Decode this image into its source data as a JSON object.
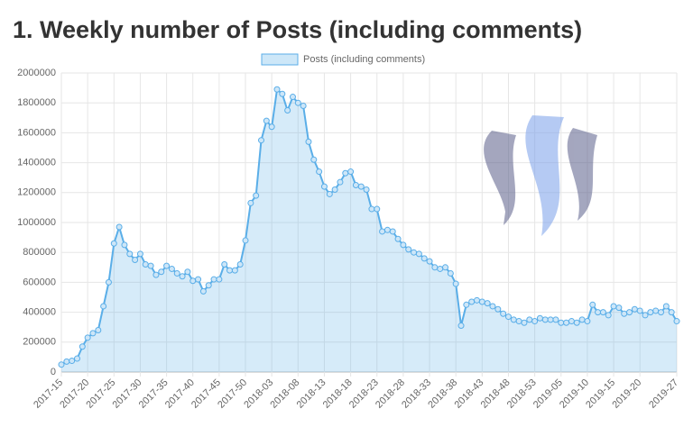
{
  "chart_data": {
    "type": "line",
    "title": "1. Weekly number of Posts (including comments)",
    "series": [
      {
        "name": "Posts (including comments)",
        "color": "#5aaee8",
        "values": [
          50000,
          70000,
          75000,
          90000,
          170000,
          230000,
          260000,
          280000,
          440000,
          600000,
          860000,
          970000,
          850000,
          790000,
          750000,
          790000,
          720000,
          710000,
          650000,
          670000,
          710000,
          690000,
          660000,
          640000,
          670000,
          610000,
          620000,
          540000,
          580000,
          620000,
          620000,
          720000,
          680000,
          680000,
          720000,
          880000,
          1130000,
          1180000,
          1550000,
          1680000,
          1640000,
          1890000,
          1860000,
          1750000,
          1840000,
          1800000,
          1780000,
          1540000,
          1420000,
          1340000,
          1240000,
          1190000,
          1220000,
          1270000,
          1330000,
          1340000,
          1250000,
          1240000,
          1220000,
          1090000,
          1090000,
          940000,
          950000,
          940000,
          890000,
          850000,
          820000,
          800000,
          790000,
          760000,
          740000,
          700000,
          690000,
          700000,
          660000,
          590000,
          310000,
          450000,
          470000,
          480000,
          470000,
          460000,
          440000,
          420000,
          390000,
          370000,
          350000,
          340000,
          330000,
          350000,
          340000,
          360000,
          350000,
          350000,
          350000,
          330000,
          330000,
          340000,
          330000,
          350000,
          340000,
          450000,
          400000,
          400000,
          380000,
          440000,
          430000,
          390000,
          400000,
          420000,
          410000,
          380000,
          400000,
          410000,
          400000,
          440000,
          400000,
          340000
        ]
      }
    ],
    "categories": [
      "2017-15",
      null,
      null,
      null,
      null,
      "2017-20",
      null,
      null,
      null,
      null,
      "2017-25",
      null,
      null,
      null,
      null,
      "2017-30",
      null,
      null,
      null,
      null,
      "2017-35",
      null,
      null,
      null,
      null,
      "2017-40",
      null,
      null,
      null,
      null,
      "2017-45",
      null,
      null,
      null,
      null,
      "2017-50",
      null,
      null,
      null,
      null,
      "2018-03",
      null,
      null,
      null,
      null,
      "2018-08",
      null,
      null,
      null,
      null,
      "2018-13",
      null,
      null,
      null,
      null,
      "2018-18",
      null,
      null,
      null,
      null,
      "2018-23",
      null,
      null,
      null,
      null,
      "2018-28",
      null,
      null,
      null,
      null,
      "2018-33",
      null,
      null,
      null,
      null,
      "2018-38",
      null,
      null,
      null,
      null,
      "2018-43",
      null,
      null,
      null,
      null,
      "2018-48",
      null,
      null,
      null,
      null,
      "2018-53",
      null,
      null,
      null,
      null,
      "2019-05",
      null,
      null,
      null,
      null,
      "2019-10",
      null,
      null,
      null,
      null,
      "2019-15",
      null,
      null,
      null,
      null,
      "2019-20",
      null,
      null,
      null,
      null,
      null,
      null,
      "2019-27"
    ],
    "ylim": [
      0,
      2000000
    ],
    "yticks": [
      0,
      200000,
      400000,
      600000,
      800000,
      1000000,
      1200000,
      1400000,
      1600000,
      1800000,
      2000000
    ],
    "grid": true,
    "legend": "top"
  }
}
